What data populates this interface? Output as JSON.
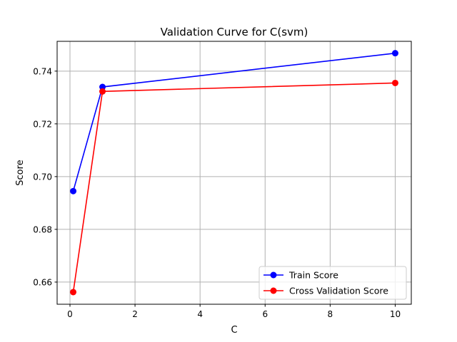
{
  "chart_data": {
    "type": "line",
    "title": "Validation Curve for C(svm)",
    "xlabel": "C",
    "ylabel": "Score",
    "xlim": [
      -0.395,
      10.495
    ],
    "ylim": [
      0.6516,
      0.7513
    ],
    "x_ticks": [
      0,
      2,
      4,
      6,
      8,
      10
    ],
    "x_tick_labels": [
      "0",
      "2",
      "4",
      "6",
      "8",
      "10"
    ],
    "y_ticks": [
      0.66,
      0.68,
      0.7,
      0.72,
      0.74
    ],
    "y_tick_labels": [
      "0.66",
      "0.68",
      "0.70",
      "0.72",
      "0.74"
    ],
    "grid": true,
    "legend_position": "lower-right",
    "x": [
      0.1,
      1,
      10
    ],
    "series": [
      {
        "name": "Train Score",
        "color": "#0000ff",
        "marker": "circle",
        "values": [
          0.6945,
          0.734,
          0.7468
        ]
      },
      {
        "name": "Cross Validation Score",
        "color": "#ff0000",
        "marker": "circle",
        "values": [
          0.6562,
          0.7323,
          0.7355
        ]
      }
    ]
  }
}
